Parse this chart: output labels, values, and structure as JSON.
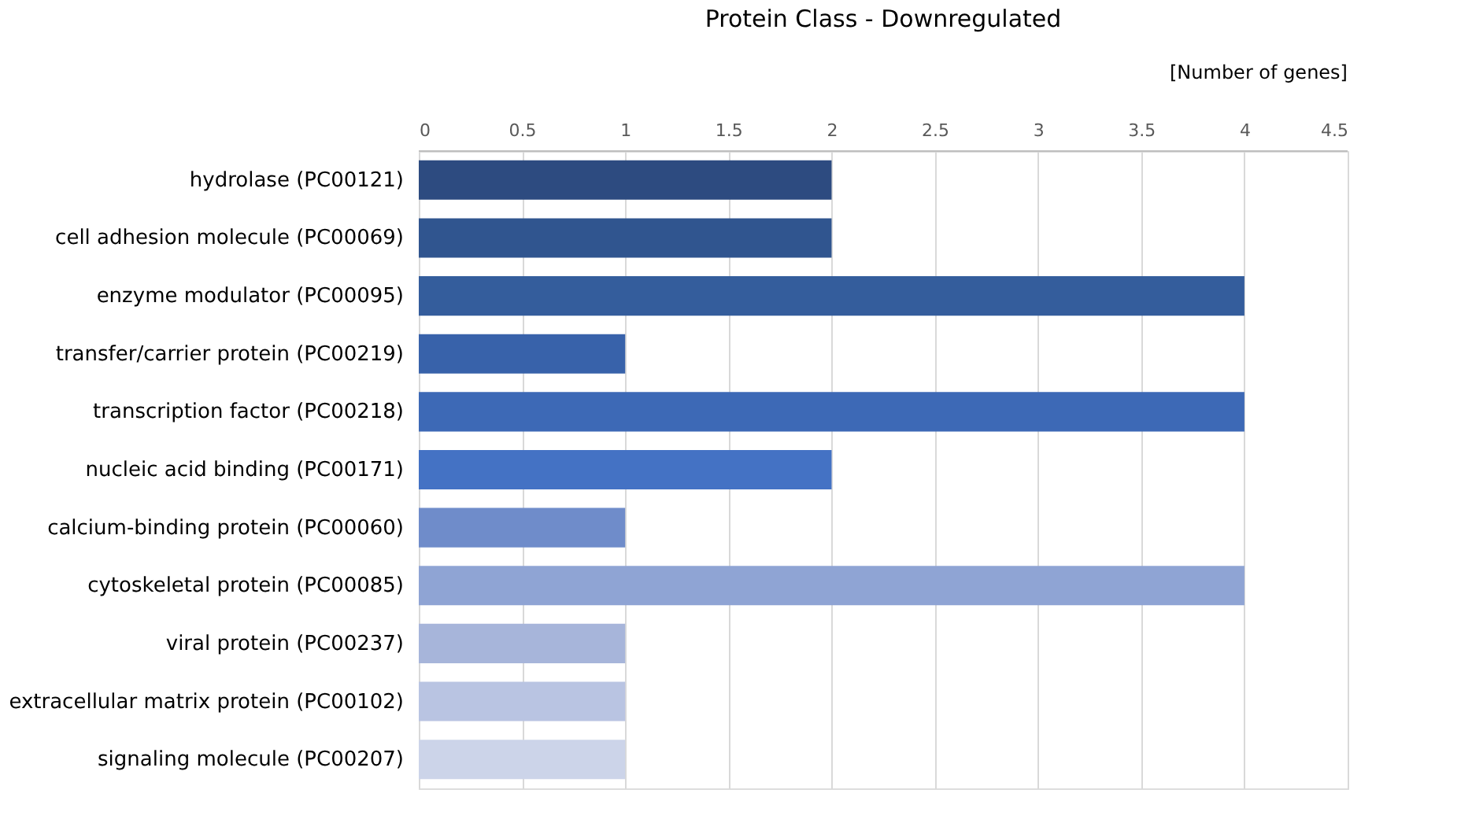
{
  "chart_data": {
    "type": "bar",
    "orientation": "horizontal",
    "title": "Protein Class - Downregulated",
    "xlabel": "[Number of genes]",
    "categories": [
      "hydrolase (PC00121)",
      "cell adhesion molecule (PC00069)",
      "enzyme modulator (PC00095)",
      "transfer/carrier protein (PC00219)",
      "transcription factor (PC00218)",
      "nucleic acid binding (PC00171)",
      "calcium-binding protein (PC00060)",
      "cytoskeletal protein (PC00085)",
      "viral protein (PC00237)",
      "extracellular matrix protein (PC00102)",
      "signaling molecule (PC00207)"
    ],
    "values": [
      2,
      2,
      4,
      1,
      4,
      2,
      1,
      4,
      1,
      1,
      1
    ],
    "colors": [
      "#2d4b80",
      "#30558f",
      "#345d9c",
      "#3862aa",
      "#3d69b6",
      "#4472c4",
      "#6f8cca",
      "#8fa4d4",
      "#a7b5da",
      "#b9c4e2",
      "#ccd4e9"
    ],
    "xlim": [
      0,
      4.5
    ],
    "xticks": [
      0,
      0.5,
      1,
      1.5,
      2,
      2.5,
      3,
      3.5,
      4,
      4.5
    ],
    "grid": "x"
  }
}
